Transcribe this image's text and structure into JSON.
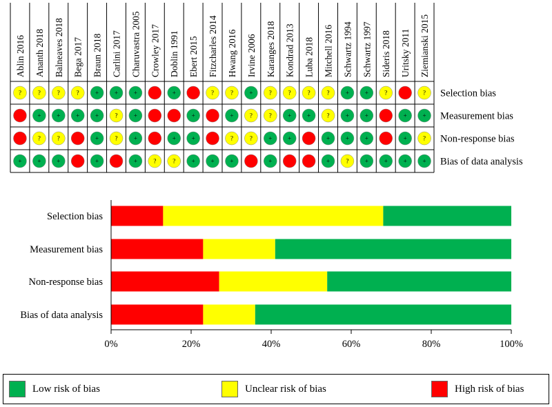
{
  "colors": {
    "low": "#00B050",
    "unclear": "#FFFF00",
    "high": "#FF0000",
    "border": "#000000"
  },
  "chart_data": [
    {
      "type": "table",
      "studies": [
        "Ablin 2016",
        "Ananth 2018",
        "Balneaves 2018",
        "Bega 2017",
        "Braun 2018",
        "Carlini 2017",
        "Charuvastra 2005",
        "Crowley 2017",
        "Doblin 1991",
        "Ebert 2015",
        "Fitzcharles 2014",
        "Hwang 2016",
        "Irvine 2006",
        "Karanges 2018",
        "Kondrad 2013",
        "Luba 2018",
        "Mitchell 2016",
        "Schwartz 1994",
        "Schwartz 1997",
        "Sideris 2018",
        "Uritsky 2011",
        "Ziemianski 2015"
      ],
      "domains": [
        "Selection bias",
        "Measurement bias",
        "Non-response bias",
        "Bias of data analysis"
      ],
      "symbols": {
        "low": "+",
        "unclear": "?",
        "high": ""
      },
      "ratings": [
        [
          "unclear",
          "unclear",
          "unclear",
          "unclear",
          "low",
          "low",
          "low",
          "high",
          "low",
          "high",
          "unclear",
          "unclear",
          "low",
          "unclear",
          "unclear",
          "unclear",
          "unclear",
          "low",
          "low",
          "unclear",
          "high",
          "unclear"
        ],
        [
          "high",
          "low",
          "low",
          "low",
          "low",
          "unclear",
          "low",
          "high",
          "high",
          "low",
          "high",
          "low",
          "unclear",
          "unclear",
          "low",
          "low",
          "unclear",
          "low",
          "low",
          "high",
          "low",
          "low"
        ],
        [
          "high",
          "unclear",
          "unclear",
          "high",
          "low",
          "unclear",
          "low",
          "high",
          "low",
          "low",
          "high",
          "unclear",
          "unclear",
          "low",
          "low",
          "high",
          "low",
          "low",
          "low",
          "high",
          "low",
          "unclear"
        ],
        [
          "low",
          "low",
          "low",
          "high",
          "low",
          "high",
          "low",
          "unclear",
          "unclear",
          "low",
          "low",
          "low",
          "high",
          "low",
          "high",
          "high",
          "low",
          "unclear",
          "low",
          "low",
          "low",
          "low"
        ]
      ]
    },
    {
      "type": "bar",
      "orientation": "horizontal",
      "stacked": true,
      "categories": [
        "Selection bias",
        "Measurement bias",
        "Non-response bias",
        "Bias of data analysis"
      ],
      "series": [
        {
          "name": "High risk of bias",
          "color": "#FF0000",
          "values": [
            13,
            23,
            27,
            23
          ]
        },
        {
          "name": "Unclear risk of bias",
          "color": "#FFFF00",
          "values": [
            55,
            18,
            27,
            13
          ]
        },
        {
          "name": "Low risk of bias",
          "color": "#00B050",
          "values": [
            32,
            59,
            46,
            64
          ]
        }
      ],
      "xlim": [
        0,
        100
      ],
      "xticks": [
        "0%",
        "20%",
        "40%",
        "60%",
        "80%",
        "100%"
      ],
      "xlabel": "",
      "ylabel": "",
      "title": ""
    }
  ],
  "legend": [
    {
      "label": "Low risk of bias",
      "color": "#00B050"
    },
    {
      "label": "Unclear risk of bias",
      "color": "#FFFF00"
    },
    {
      "label": "High risk of bias",
      "color": "#FF0000"
    }
  ]
}
